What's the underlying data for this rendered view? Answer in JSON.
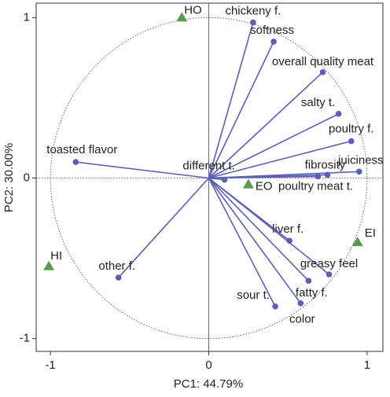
{
  "chart_data": {
    "type": "biplot",
    "x_label": "PC1: 44.79%",
    "y_label": "PC2: 30.00%",
    "xlim": [
      -1.09,
      1.1
    ],
    "ylim": [
      -1.08,
      1.09
    ],
    "xticks": [
      -1,
      0,
      1
    ],
    "yticks": [
      -1,
      0,
      1
    ],
    "circle_radius": 1,
    "series": [
      {
        "name": "variables",
        "color": "#5b60b5",
        "marker": "circle",
        "vectors": true,
        "labels": [
          "chickeny f.",
          "softness",
          "overall quality meat",
          "salty t.",
          "poultry f.",
          "juiciness",
          "fibrosity",
          "poultry meat t.",
          "toasted flavor",
          "different t.",
          "liver f.",
          "greasy feel",
          "fatty f.",
          "sour t.",
          "color",
          "other f."
        ],
        "x": [
          0.28,
          0.41,
          0.72,
          0.82,
          0.9,
          0.95,
          0.69,
          0.75,
          -0.84,
          0.1,
          0.51,
          0.76,
          0.63,
          0.42,
          0.58,
          -0.57
        ],
        "values": [
          0.97,
          0.85,
          0.66,
          0.4,
          0.23,
          0.04,
          0.01,
          0.02,
          0.1,
          -0.01,
          -0.39,
          -0.6,
          -0.64,
          -0.8,
          -0.78,
          -0.62
        ]
      },
      {
        "name": "samples",
        "color": "#5a9a4a",
        "marker": "triangle",
        "vectors": false,
        "labels": [
          "HO",
          "EO",
          "EI",
          "HI"
        ],
        "x": [
          -0.17,
          0.25,
          0.94,
          -1.01
        ],
        "values": [
          1.0,
          -0.04,
          -0.4,
          -0.55
        ]
      }
    ]
  }
}
